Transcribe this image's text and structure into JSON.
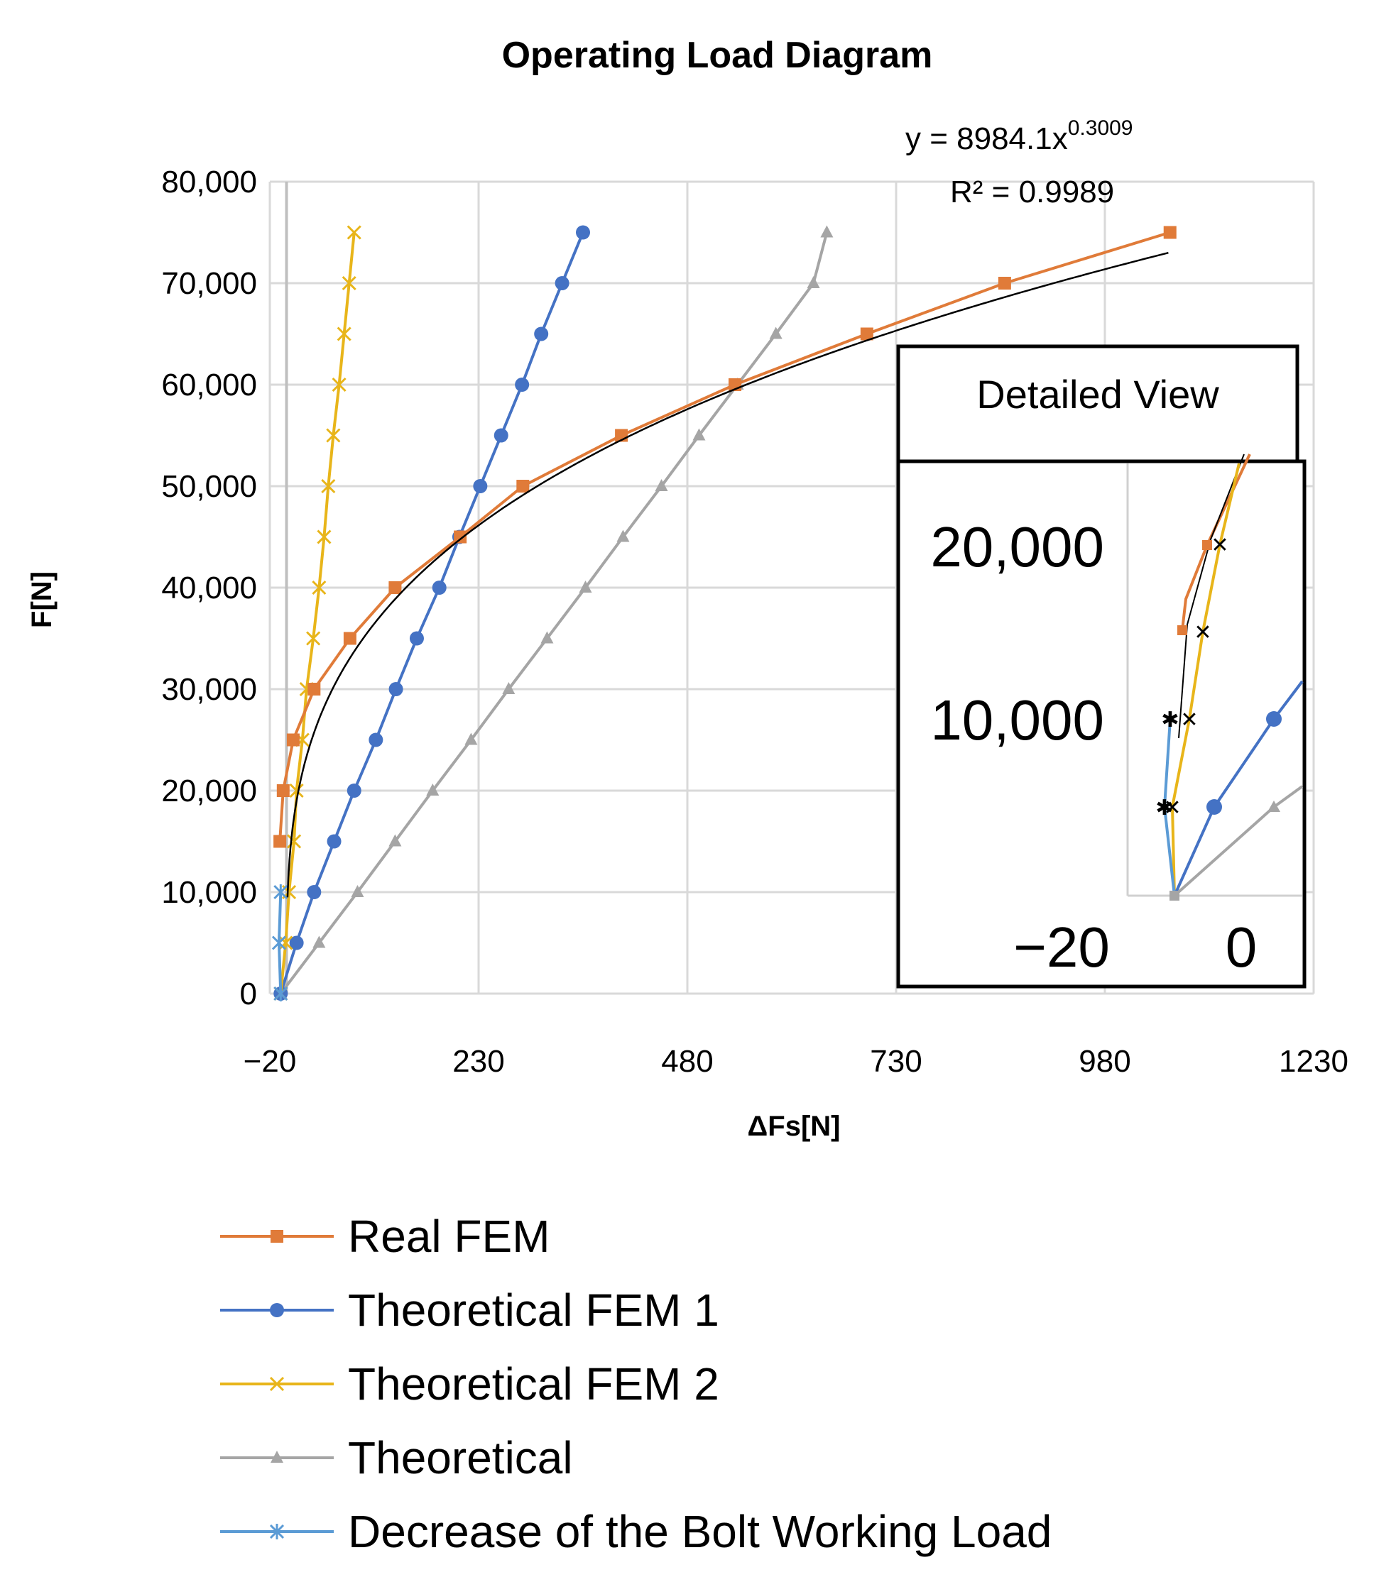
{
  "chart_data": {
    "type": "line",
    "title": "Operating Load Diagram",
    "xlabel": "ΔFs[N]",
    "ylabel": "F[N]",
    "xlim": [
      -20,
      1230
    ],
    "ylim": [
      0,
      80000
    ],
    "x_ticks": [
      -20,
      230,
      480,
      730,
      980,
      1230
    ],
    "x_tick_labels": [
      "−20",
      "230",
      "480",
      "730",
      "980",
      "1230"
    ],
    "y_ticks": [
      0,
      10000,
      20000,
      30000,
      40000,
      50000,
      60000,
      70000,
      80000
    ],
    "y_tick_labels": [
      "0",
      "10,000",
      "20,000",
      "30,000",
      "40,000",
      "50,000",
      "60,000",
      "70,000",
      "80,000"
    ],
    "grid": true,
    "legend_position": "bottom",
    "series": [
      {
        "name": "Real FEM",
        "color": "#E07B39",
        "marker": "square",
        "points": [
          [
            -8,
            15000
          ],
          [
            -4,
            20000
          ],
          [
            8,
            25000
          ],
          [
            33,
            30000
          ],
          [
            76,
            35000
          ],
          [
            130,
            40000
          ],
          [
            208,
            45000
          ],
          [
            283,
            50000
          ],
          [
            401,
            55000
          ],
          [
            537,
            60000
          ],
          [
            695,
            65000
          ],
          [
            860,
            70000
          ],
          [
            1058,
            75000
          ]
        ]
      },
      {
        "name": "Theoretical FEM 1",
        "color": "#4472C4",
        "marker": "circle",
        "points": [
          [
            -7,
            0
          ],
          [
            12,
            5000
          ],
          [
            33,
            10000
          ],
          [
            57,
            15000
          ],
          [
            81,
            20000
          ],
          [
            107,
            25000
          ],
          [
            131,
            30000
          ],
          [
            156,
            35000
          ],
          [
            183,
            40000
          ],
          [
            207,
            45000
          ],
          [
            232,
            50000
          ],
          [
            257,
            55000
          ],
          [
            282,
            60000
          ],
          [
            305,
            65000
          ],
          [
            330,
            70000
          ],
          [
            355,
            75000
          ]
        ]
      },
      {
        "name": "Theoretical FEM 2",
        "color": "#E8B51A",
        "marker": "x",
        "points": [
          [
            -7,
            0
          ],
          [
            -1,
            5000
          ],
          [
            3,
            10000
          ],
          [
            9,
            15000
          ],
          [
            12,
            20000
          ],
          [
            19,
            25000
          ],
          [
            24,
            30000
          ],
          [
            32,
            35000
          ],
          [
            39,
            40000
          ],
          [
            45,
            45000
          ],
          [
            50,
            50000
          ],
          [
            56,
            55000
          ],
          [
            63,
            60000
          ],
          [
            69,
            65000
          ],
          [
            75,
            70000
          ],
          [
            81,
            75000
          ]
        ]
      },
      {
        "name": "Theoretical",
        "color": "#A5A5A5",
        "marker": "triangle",
        "points": [
          [
            -7,
            0
          ],
          [
            39,
            5000
          ],
          [
            85,
            10000
          ],
          [
            130,
            15000
          ],
          [
            175,
            20000
          ],
          [
            221,
            25000
          ],
          [
            266,
            30000
          ],
          [
            312,
            35000
          ],
          [
            358,
            40000
          ],
          [
            403,
            45000
          ],
          [
            449,
            50000
          ],
          [
            494,
            55000
          ],
          [
            540,
            60000
          ],
          [
            586,
            65000
          ],
          [
            631,
            70000
          ],
          [
            647,
            75000
          ]
        ]
      },
      {
        "name": "Decrease of the Bolt Working Load",
        "color": "#5B9BD5",
        "marker": "asterisk",
        "points": [
          [
            -7,
            0
          ],
          [
            -9,
            5000
          ],
          [
            -7,
            10000
          ]
        ]
      }
    ],
    "trendline": {
      "type": "power",
      "color": "#000000",
      "coefficient": 8984.1,
      "exponent": 0.3009,
      "x_range": [
        0,
        1056
      ],
      "equation_prefix": "y = 8984.1x",
      "equation_exponent": "0.3009",
      "r_squared_label": "R² = 0.9989"
    },
    "inset": {
      "title": "Detailed View",
      "x_tick_labels": [
        "−20",
        "0"
      ],
      "y_tick_labels": [
        "20,000",
        "10,000"
      ]
    }
  }
}
